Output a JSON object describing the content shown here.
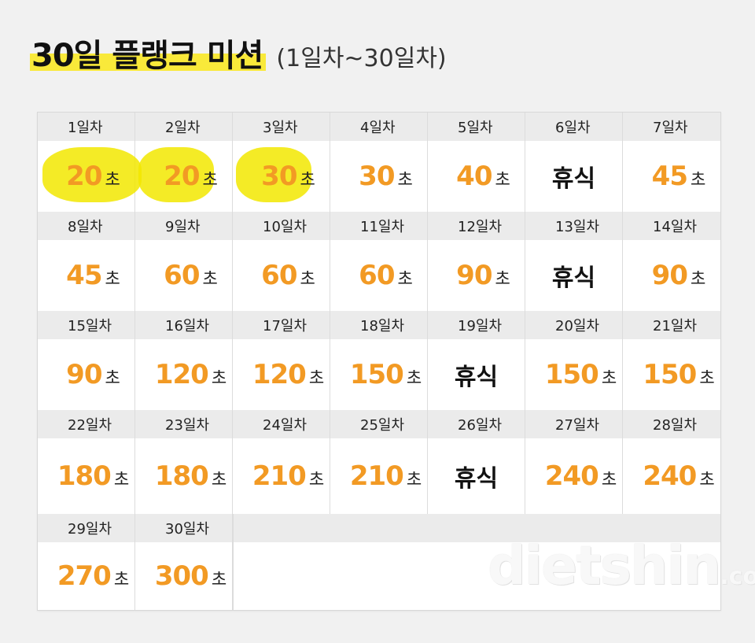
{
  "header": {
    "title": "30일 플랭크 미션",
    "subtitle": "(1일차~30일차)"
  },
  "calendar": {
    "unit": "초",
    "rest_label": "휴식",
    "rows": [
      [
        {
          "day": "1일차",
          "value": "20"
        },
        {
          "day": "2일차",
          "value": "20"
        },
        {
          "day": "3일차",
          "value": "30"
        },
        {
          "day": "4일차",
          "value": "30"
        },
        {
          "day": "5일차",
          "value": "40"
        },
        {
          "day": "6일차",
          "value": "휴식"
        },
        {
          "day": "7일차",
          "value": "45"
        }
      ],
      [
        {
          "day": "8일차",
          "value": "45"
        },
        {
          "day": "9일차",
          "value": "60"
        },
        {
          "day": "10일차",
          "value": "60"
        },
        {
          "day": "11일차",
          "value": "60"
        },
        {
          "day": "12일차",
          "value": "90"
        },
        {
          "day": "13일차",
          "value": "휴식"
        },
        {
          "day": "14일차",
          "value": "90"
        }
      ],
      [
        {
          "day": "15일차",
          "value": "90"
        },
        {
          "day": "16일차",
          "value": "120"
        },
        {
          "day": "17일차",
          "value": "120"
        },
        {
          "day": "18일차",
          "value": "150"
        },
        {
          "day": "19일차",
          "value": "휴식"
        },
        {
          "day": "20일차",
          "value": "150"
        },
        {
          "day": "21일차",
          "value": "150"
        }
      ],
      [
        {
          "day": "22일차",
          "value": "180"
        },
        {
          "day": "23일차",
          "value": "180"
        },
        {
          "day": "24일차",
          "value": "210"
        },
        {
          "day": "25일차",
          "value": "210"
        },
        {
          "day": "26일차",
          "value": "휴식"
        },
        {
          "day": "27일차",
          "value": "240"
        },
        {
          "day": "28일차",
          "value": "240"
        }
      ],
      [
        {
          "day": "29일차",
          "value": "270"
        },
        {
          "day": "30일차",
          "value": "300"
        }
      ]
    ],
    "highlighted_days": [
      "1일차",
      "2일차",
      "3일차"
    ],
    "highlight_color": "#f2e700"
  },
  "colors": {
    "accent": "#f29a24",
    "title_highlight": "#f9e93a"
  },
  "watermark": {
    "brand": "dietshin",
    "suffix": ".com"
  }
}
